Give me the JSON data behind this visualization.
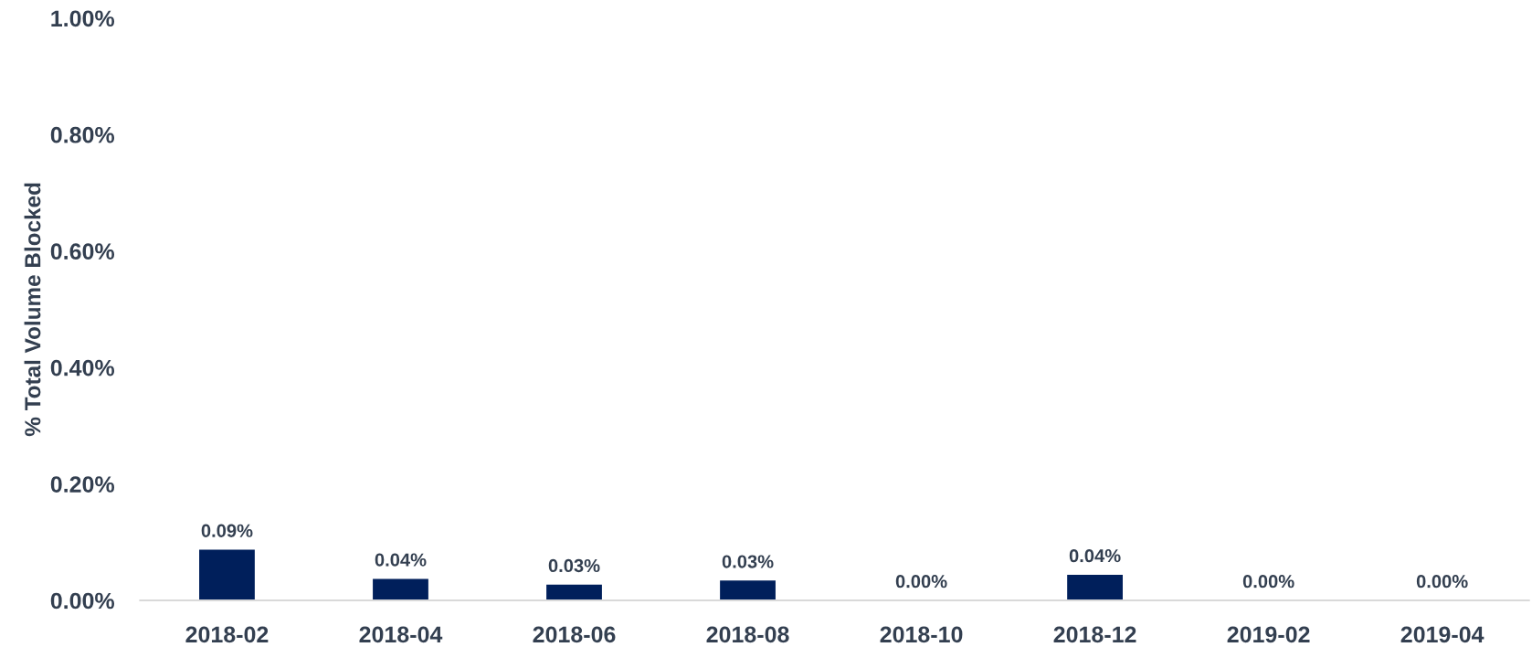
{
  "chart_data": {
    "type": "bar",
    "ylabel": "% Total Volume Blocked",
    "categories": [
      "2018-02",
      "2018-04",
      "2018-06",
      "2018-08",
      "2018-10",
      "2018-12",
      "2019-02",
      "2019-04"
    ],
    "values": [
      0.087,
      0.037,
      0.027,
      0.034,
      0,
      0.044,
      0,
      0
    ],
    "value_labels": [
      "0.09%",
      "0.04%",
      "0.03%",
      "0.03%",
      "0.00%",
      "0.04%",
      "0.00%",
      "0.00%"
    ],
    "color": "#001f5b",
    "ylim": [
      0,
      1
    ],
    "yticks": [
      {
        "value": 0,
        "label": "0.00%"
      },
      {
        "value": 0.2,
        "label": "0.20%"
      },
      {
        "value": 0.4,
        "label": "0.40%"
      },
      {
        "value": 0.6,
        "label": "0.60%"
      },
      {
        "value": 0.8,
        "label": "0.80%"
      },
      {
        "value": 1,
        "label": "1.00%"
      }
    ],
    "grid": false
  }
}
